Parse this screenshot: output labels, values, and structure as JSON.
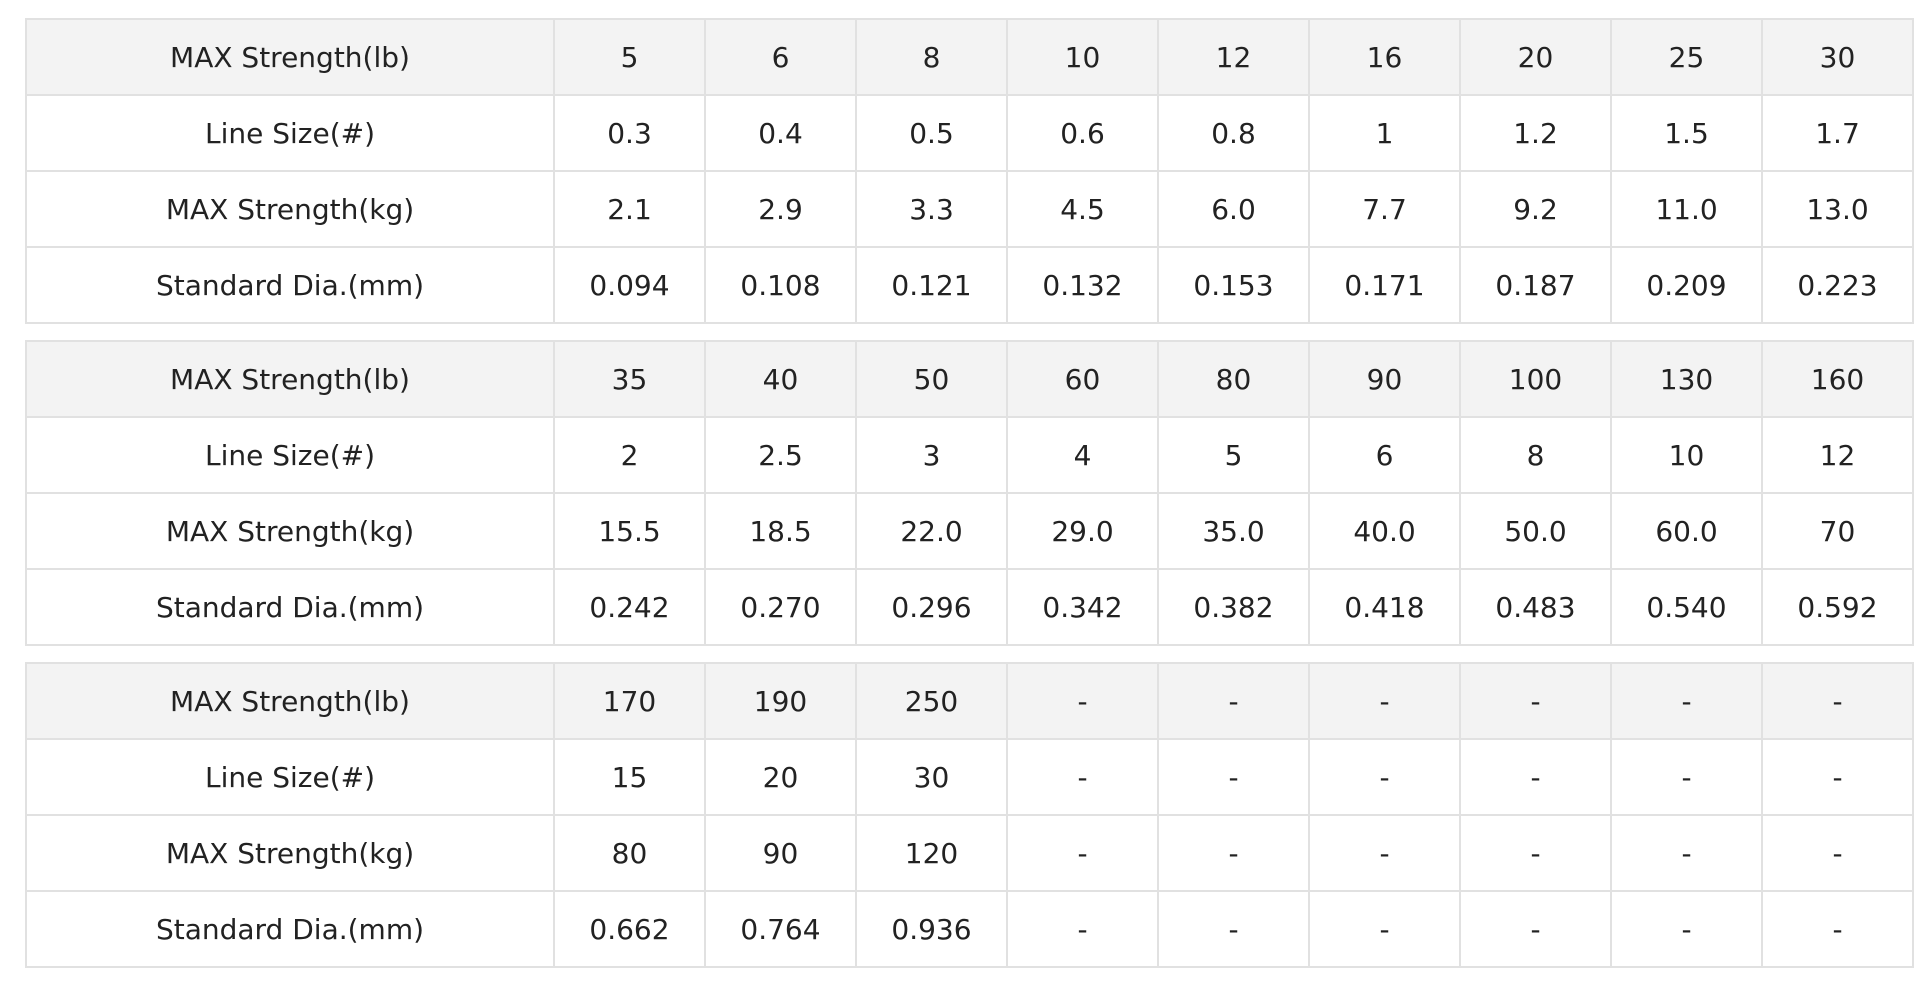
{
  "tables": [
    {
      "rows": [
        {
          "label": "MAX Strength(lb)",
          "values": [
            "5",
            "6",
            "8",
            "10",
            "12",
            "16",
            "20",
            "25",
            "30"
          ]
        },
        {
          "label": "Line Size(#)",
          "values": [
            "0.3",
            "0.4",
            "0.5",
            "0.6",
            "0.8",
            "1",
            "1.2",
            "1.5",
            "1.7"
          ]
        },
        {
          "label": "MAX Strength(kg)",
          "values": [
            "2.1",
            "2.9",
            "3.3",
            "4.5",
            "6.0",
            "7.7",
            "9.2",
            "11.0",
            "13.0"
          ]
        },
        {
          "label": "Standard Dia.(mm)",
          "values": [
            "0.094",
            "0.108",
            "0.121",
            "0.132",
            "0.153",
            "0.171",
            "0.187",
            "0.209",
            "0.223"
          ]
        }
      ]
    },
    {
      "rows": [
        {
          "label": "MAX Strength(lb)",
          "values": [
            "35",
            "40",
            "50",
            "60",
            "80",
            "90",
            "100",
            "130",
            "160"
          ]
        },
        {
          "label": "Line Size(#)",
          "values": [
            "2",
            "2.5",
            "3",
            "4",
            "5",
            "6",
            "8",
            "10",
            "12"
          ]
        },
        {
          "label": "MAX Strength(kg)",
          "values": [
            "15.5",
            "18.5",
            "22.0",
            "29.0",
            "35.0",
            "40.0",
            "50.0",
            "60.0",
            "70"
          ]
        },
        {
          "label": "Standard Dia.(mm)",
          "values": [
            "0.242",
            "0.270",
            "0.296",
            "0.342",
            "0.382",
            "0.418",
            "0.483",
            "0.540",
            "0.592"
          ]
        }
      ]
    },
    {
      "rows": [
        {
          "label": "MAX Strength(lb)",
          "values": [
            "170",
            "190",
            "250",
            "-",
            "-",
            "-",
            "-",
            "-",
            "-"
          ]
        },
        {
          "label": "Line Size(#)",
          "values": [
            "15",
            "20",
            "30",
            "-",
            "-",
            "-",
            "-",
            "-",
            "-"
          ]
        },
        {
          "label": "MAX Strength(kg)",
          "values": [
            "80",
            "90",
            "120",
            "-",
            "-",
            "-",
            "-",
            "-",
            "-"
          ]
        },
        {
          "label": "Standard Dia.(mm)",
          "values": [
            "0.662",
            "0.764",
            "0.936",
            "-",
            "-",
            "-",
            "-",
            "-",
            "-"
          ]
        }
      ]
    }
  ],
  "colors": {
    "header_background": "#f3f3f3",
    "border": "#e1e1e1",
    "text": "#222222"
  }
}
